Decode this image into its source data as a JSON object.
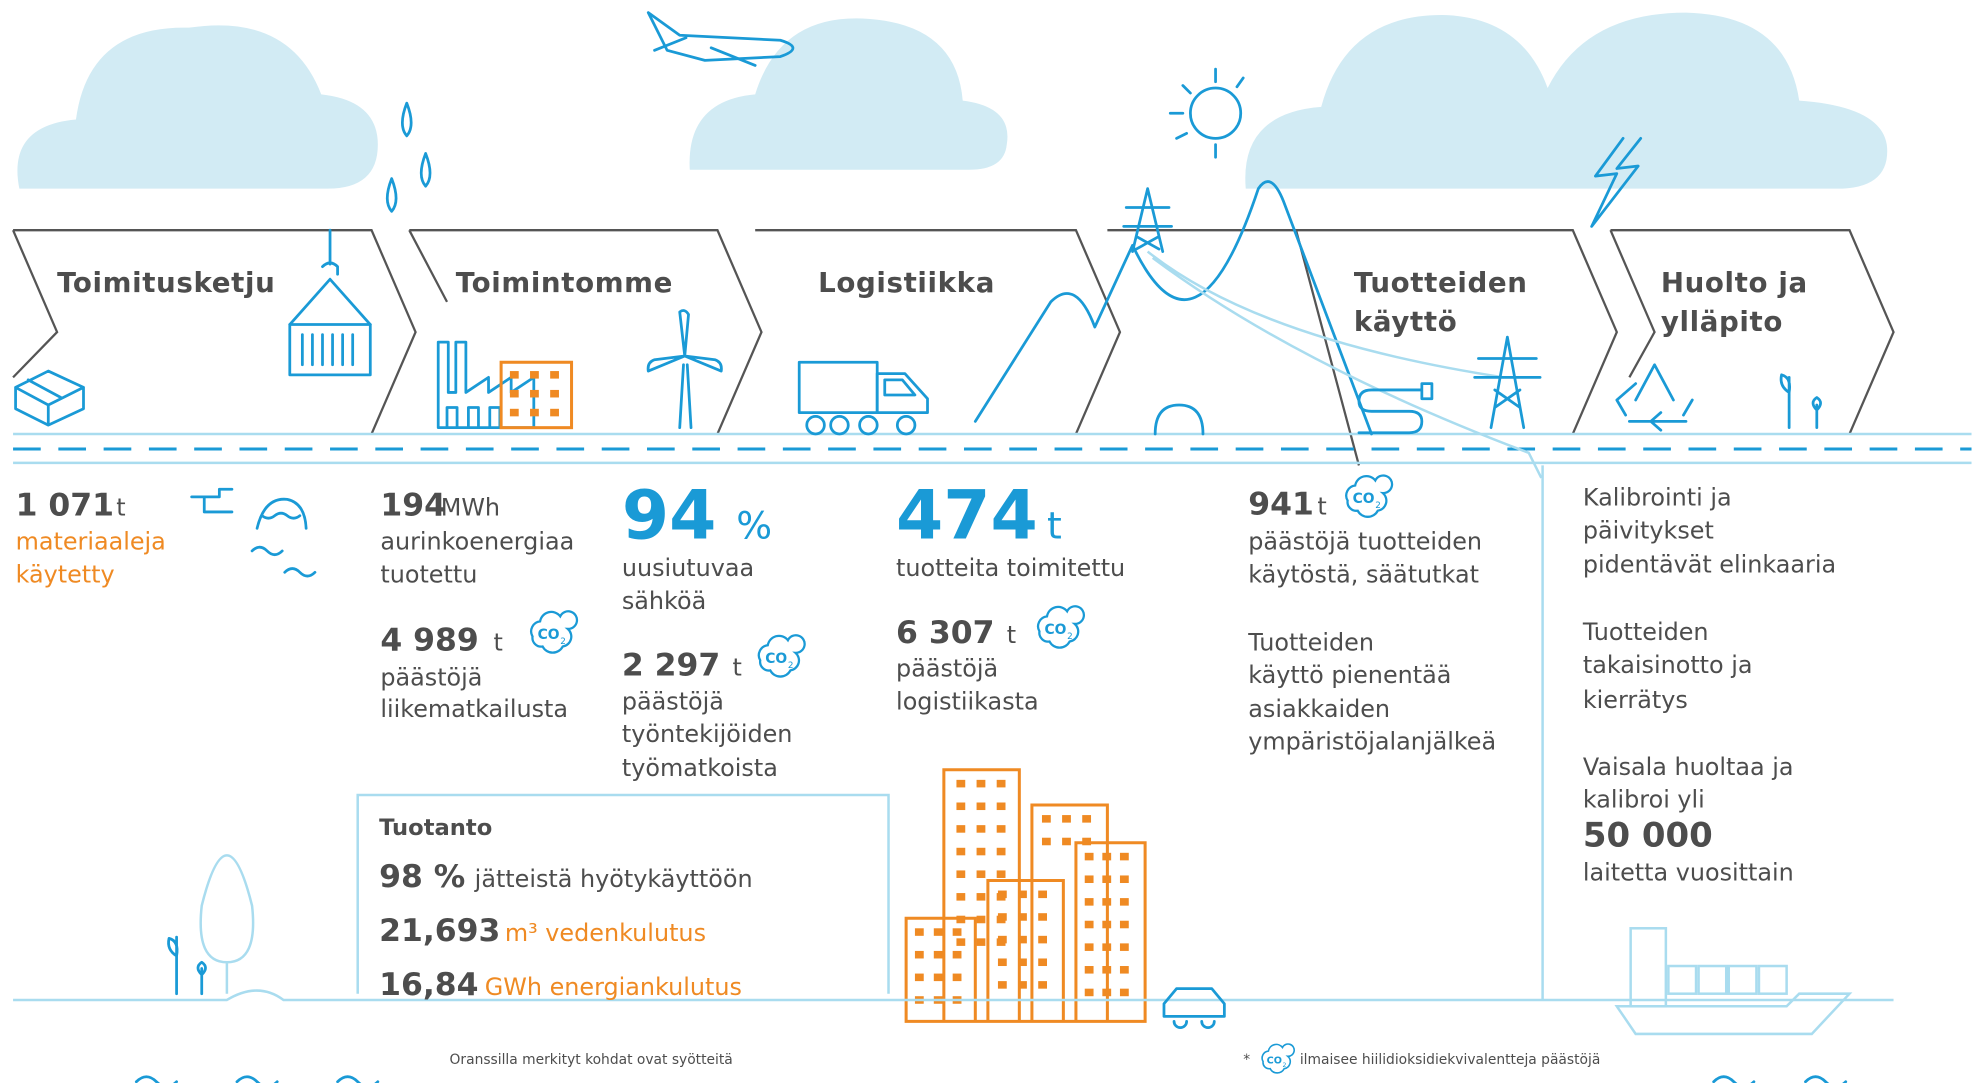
{
  "stages": [
    {
      "lines": [
        "Toimitusketju"
      ]
    },
    {
      "lines": [
        "Toimintomme"
      ]
    },
    {
      "lines": [
        "Logistiikka"
      ]
    },
    {
      "lines": [
        "Tuotteiden",
        "käyttö"
      ]
    },
    {
      "lines": [
        "Huolto ja",
        "ylläpito"
      ]
    }
  ],
  "supply_chain": {
    "value": "1 071",
    "unit": "t",
    "lines": [
      "materiaaleja",
      "käytetty"
    ]
  },
  "operations": {
    "solar": {
      "value": "194",
      "unit": "MWh",
      "lines": [
        "aurinkoenergiaa",
        "tuotettu"
      ]
    },
    "travel": {
      "value": "4 989",
      "unit": "t",
      "lines": [
        "päästöjä",
        "liikematkailusta"
      ]
    },
    "renewable": {
      "value": "94",
      "unit": "%",
      "lines": [
        "uusiutuvaa",
        "sähköä"
      ]
    },
    "commute": {
      "value": "2 297",
      "unit": "t",
      "lines": [
        "päästöjä",
        "työntekijöiden",
        "työmatkoista"
      ]
    }
  },
  "production": {
    "title": "Tuotanto",
    "items": [
      {
        "value": "98 %",
        "text": "jätteistä hyötykäyttöön"
      },
      {
        "value": "21,693",
        "text": "m³ vedenkulutus"
      },
      {
        "value": "16,84",
        "text": "GWh energiankulutus"
      }
    ]
  },
  "logistics": {
    "delivered": {
      "value": "474",
      "unit": "t",
      "lines": [
        "tuotteita toimitettu"
      ]
    },
    "emissions": {
      "value": "6 307",
      "unit": "t",
      "lines": [
        "päästöjä",
        "logistiikasta"
      ]
    }
  },
  "product_use": {
    "emissions": {
      "value": "941",
      "unit": "t",
      "lines": [
        "päästöjä tuotteiden",
        "käytöstä, säätutkat"
      ]
    },
    "lines": [
      "Tuotteiden",
      "käyttö pienentää",
      "asiakkaiden",
      "ympäristöjalanjälkeä"
    ]
  },
  "maintenance": {
    "calibration": [
      "Kalibrointi ja",
      "päivitykset",
      "pidentävät elinkaaria"
    ],
    "takeback": [
      "Tuotteiden",
      "takaisinotto ja",
      "kierrätys"
    ],
    "service": [
      "Vaisala huoltaa ja",
      "kalibroi yli"
    ],
    "value": "50 000",
    "after": [
      "laitetta vuosittain"
    ]
  },
  "co2_icon": {
    "main": "CO",
    "sub": "2"
  },
  "footer": {
    "note": "Oranssilla merkityt kohdat ovat syötteitä",
    "star": "*",
    "co2_note": "ilmaisee hiilidioksidiekvivalentteja päästöjä"
  }
}
